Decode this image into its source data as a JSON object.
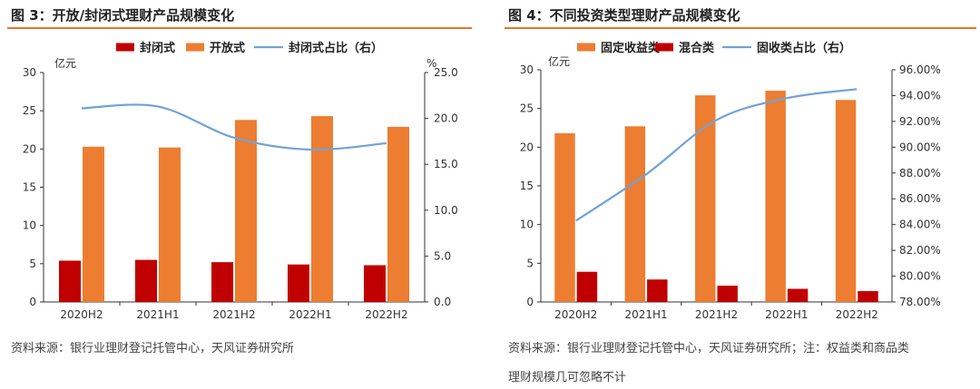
{
  "figures": [
    {
      "title": "图 3：开放/封闭式理财产品规模变化",
      "source": "资料来源：银行业理财登记托管中心，天风证券研究所"
    },
    {
      "title": "图 4：不同投资类型理财产品规模变化",
      "source_line1": "资料来源：银行业理财登记托管中心，天风证券研究所；注：权益类和商品类",
      "source_line2": "理财规模几可忽略不计"
    }
  ],
  "chart_data": [
    {
      "type": "bar",
      "categories": [
        "2020H2",
        "2021H1",
        "2021H2",
        "2022H1",
        "2022H2"
      ],
      "series": [
        {
          "name": "封闭式",
          "type": "bar",
          "axis": "left",
          "color": "#c00000",
          "values": [
            5.4,
            5.5,
            5.2,
            4.9,
            4.8
          ]
        },
        {
          "name": "开放式",
          "type": "bar",
          "axis": "left",
          "color": "#ed7d31",
          "values": [
            20.3,
            20.2,
            23.8,
            24.3,
            22.9
          ]
        },
        {
          "name": "封闭式占比（右）",
          "type": "line",
          "axis": "right",
          "color": "#6fa3d6",
          "values": [
            21.1,
            21.3,
            17.9,
            16.6,
            17.3
          ]
        }
      ],
      "ylabel_left": "亿元",
      "ylabel_right": "%",
      "ylim_left": [
        0,
        30
      ],
      "ylim_right": [
        0,
        25
      ],
      "yticks_left": [
        "0",
        "5",
        "10",
        "15",
        "20",
        "25",
        "30"
      ],
      "yticks_right": [
        "0.0",
        "5.0",
        "10.0",
        "15.0",
        "20.0",
        "25.0"
      ],
      "legend_position": "top"
    },
    {
      "type": "bar",
      "categories": [
        "2020H2",
        "2021H1",
        "2021H2",
        "2022H1",
        "2022H2"
      ],
      "series": [
        {
          "name": "固定收益类",
          "type": "bar",
          "axis": "left",
          "color": "#ed7d31",
          "values": [
            21.8,
            22.7,
            26.7,
            27.3,
            26.1
          ]
        },
        {
          "name": "混合类",
          "type": "bar",
          "axis": "left",
          "color": "#c00000",
          "values": [
            3.9,
            2.9,
            2.1,
            1.7,
            1.4
          ]
        },
        {
          "name": "固收类占比（右）",
          "type": "line",
          "axis": "right",
          "color": "#6fa3d6",
          "values": [
            84.3,
            87.9,
            92.1,
            93.8,
            94.5
          ]
        }
      ],
      "ylabel_left": "亿元",
      "ylim_left": [
        0,
        30
      ],
      "ylim_right": [
        78,
        96
      ],
      "yticks_left": [
        "0",
        "5",
        "10",
        "15",
        "20",
        "25",
        "30"
      ],
      "yticks_right": [
        "78.00%",
        "80.00%",
        "82.00%",
        "84.00%",
        "86.00%",
        "88.00%",
        "90.00%",
        "92.00%",
        "94.00%",
        "96.00%"
      ],
      "legend_position": "top"
    }
  ]
}
